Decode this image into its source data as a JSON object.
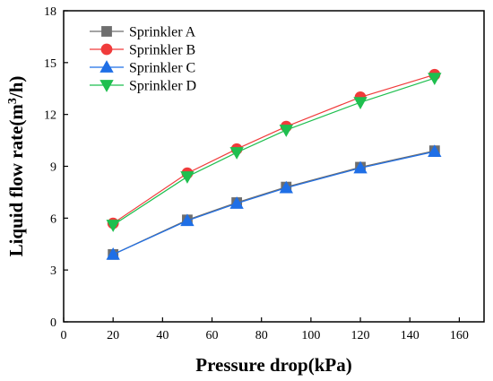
{
  "chart_data": {
    "type": "line",
    "xlabel": "Pressure drop(kPa)",
    "ylabel_main": "Liquid flow rate(m",
    "ylabel_sup": "3",
    "ylabel_end": "/h)",
    "xlim": [
      0,
      170
    ],
    "ylim": [
      0,
      18
    ],
    "xticks": [
      0,
      20,
      40,
      60,
      80,
      100,
      120,
      140,
      160
    ],
    "yticks": [
      0,
      3,
      6,
      9,
      12,
      15,
      18
    ],
    "legend_position": "top-left",
    "grid": false,
    "x": [
      20,
      50,
      70,
      90,
      120,
      150
    ],
    "series": [
      {
        "name": "Sprinkler A",
        "marker": "square",
        "color": "#6e6e6e",
        "values": [
          3.9,
          5.9,
          6.9,
          7.8,
          8.95,
          9.9
        ]
      },
      {
        "name": "Sprinkler B",
        "marker": "circle",
        "color": "#f03b3b",
        "values": [
          5.7,
          8.6,
          10.0,
          11.3,
          13.0,
          14.3
        ]
      },
      {
        "name": "Sprinkler C",
        "marker": "triangle-up",
        "color": "#1f6fe6",
        "values": [
          3.9,
          5.85,
          6.85,
          7.75,
          8.9,
          9.85
        ]
      },
      {
        "name": "Sprinkler D",
        "marker": "triangle-down",
        "color": "#1fbf4f",
        "values": [
          5.6,
          8.4,
          9.8,
          11.1,
          12.7,
          14.1
        ]
      }
    ]
  }
}
